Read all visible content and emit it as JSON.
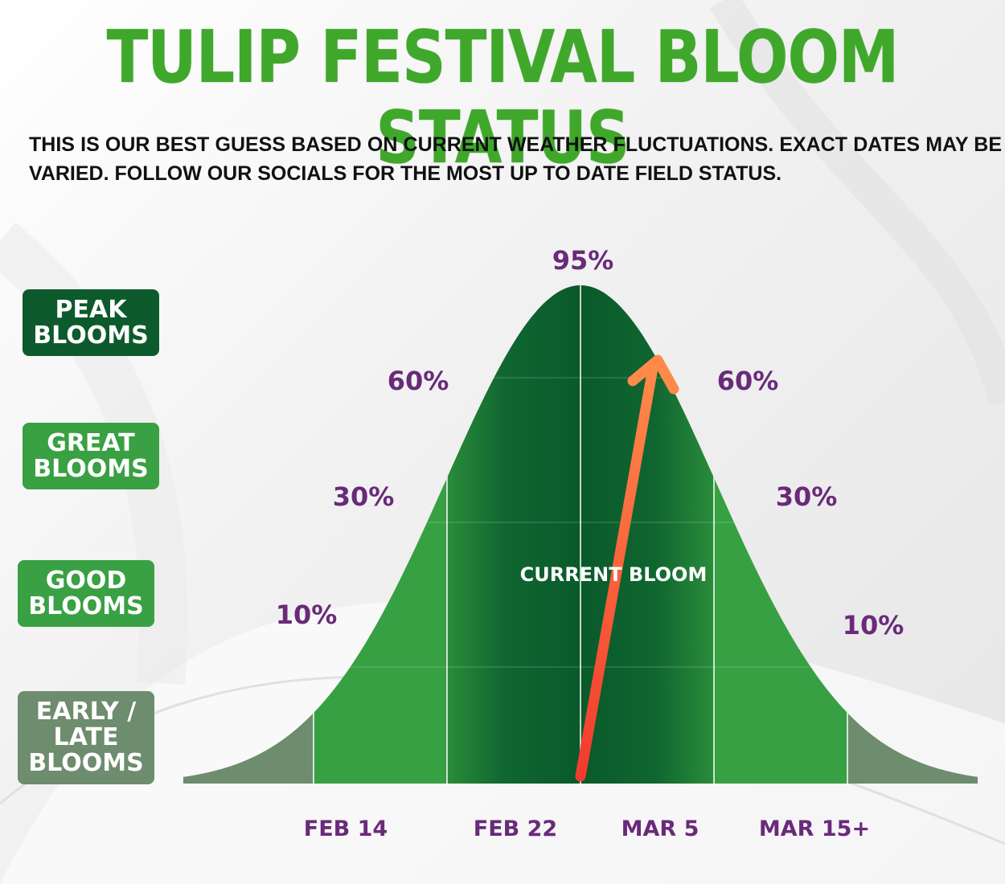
{
  "header": {
    "title": "TULIP FESTIVAL BLOOM STATUS",
    "subtitle": "THIS IS OUR BEST GUESS BASED ON CURRENT WEATHER FLUCTUATIONS. EXACT DATES MAY BE VARIED. FOLLOW OUR SOCIALS FOR THE MOST UP TO DATE FIELD STATUS."
  },
  "legend": [
    {
      "line1": "PEAK",
      "line2": "BLOOMS",
      "color": "#0d5a2c"
    },
    {
      "line1": "GREAT",
      "line2": "BLOOMS",
      "color": "#39a043"
    },
    {
      "line1": "GOOD",
      "line2": "BLOOMS",
      "color": "#39a043"
    },
    {
      "line1": "EARLY /",
      "line2": "LATE",
      "line3": "BLOOMS",
      "color": "#6e8c6e"
    }
  ],
  "chart_data": {
    "type": "area",
    "title": "TULIP FESTIVAL BLOOM STATUS",
    "categories": [
      "FEB 14",
      "FEB 22",
      "MAR 5",
      "MAR 15+"
    ],
    "peak_label": "95%",
    "left_labels": [
      "10%",
      "30%",
      "60%"
    ],
    "right_labels": [
      "60%",
      "30%",
      "10%"
    ],
    "bloom_percent": [
      10,
      30,
      60,
      95,
      60,
      30,
      10
    ],
    "current_marker_label": "CURRENT BLOOM",
    "current_marker_index": 3,
    "colors": {
      "tails": "#6e8c6e",
      "shoulders": "#37a043",
      "peak_edge": "#2a8c3a",
      "peak_center": "#0a5a2a",
      "arrow_start": "#f23a2e",
      "arrow_end": "#ff8a4a",
      "label_purple": "#6a2a7a"
    }
  }
}
